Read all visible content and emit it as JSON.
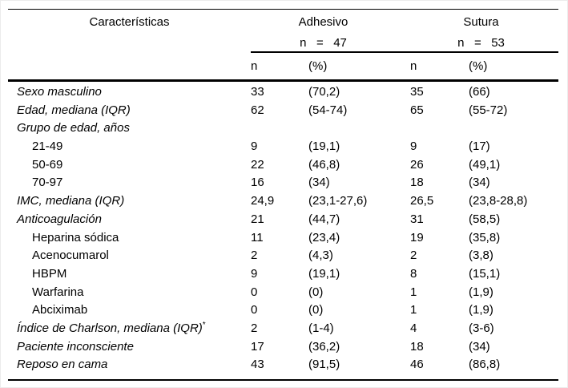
{
  "colors": {
    "text": "#000000",
    "rule": "#000000",
    "background": "#ffffff"
  },
  "table": {
    "first_col_header": "Características",
    "groups": [
      {
        "name": "Adhesivo",
        "n_line": "n   =   47"
      },
      {
        "name": "Sutura",
        "n_line": "n   =   53"
      }
    ],
    "subheaders": [
      "n",
      "(%)",
      "n",
      "(%)"
    ],
    "rows": [
      {
        "label": "Sexo masculino",
        "italic": true,
        "indent": false,
        "n1": "33",
        "p1": "(70,2)",
        "n2": "35",
        "p2": "(66)"
      },
      {
        "label": "Edad, mediana (IQR)",
        "italic": true,
        "indent": false,
        "n1": "62",
        "p1": "(54-74)",
        "n2": "65",
        "p2": "(55-72)"
      },
      {
        "label": "Grupo de edad, años",
        "italic": true,
        "indent": false,
        "n1": "",
        "p1": "",
        "n2": "",
        "p2": ""
      },
      {
        "label": "21-49",
        "italic": false,
        "indent": true,
        "n1": "9",
        "p1": "(19,1)",
        "n2": "9",
        "p2": "(17)"
      },
      {
        "label": "50-69",
        "italic": false,
        "indent": true,
        "n1": "22",
        "p1": "(46,8)",
        "n2": "26",
        "p2": "(49,1)"
      },
      {
        "label": "70-97",
        "italic": false,
        "indent": true,
        "n1": "16",
        "p1": "(34)",
        "n2": "18",
        "p2": "(34)"
      },
      {
        "label": "IMC, mediana (IQR)",
        "italic": true,
        "indent": false,
        "n1": "24,9",
        "p1": "(23,1-27,6)",
        "n2": "26,5",
        "p2": "(23,8-28,8)"
      },
      {
        "label": "Anticoagulación",
        "italic": true,
        "indent": false,
        "n1": "21",
        "p1": "(44,7)",
        "n2": "31",
        "p2": "(58,5)"
      },
      {
        "label": "Heparina sódica",
        "italic": false,
        "indent": true,
        "n1": "11",
        "p1": "(23,4)",
        "n2": "19",
        "p2": "(35,8)"
      },
      {
        "label": "Acenocumarol",
        "italic": false,
        "indent": true,
        "n1": "2",
        "p1": "(4,3)",
        "n2": "2",
        "p2": "(3,8)"
      },
      {
        "label": "HBPM",
        "italic": false,
        "indent": true,
        "n1": "9",
        "p1": "(19,1)",
        "n2": "8",
        "p2": "(15,1)"
      },
      {
        "label": "Warfarina",
        "italic": false,
        "indent": true,
        "n1": "0",
        "p1": "(0)",
        "n2": "1",
        "p2": "(1,9)"
      },
      {
        "label": "Abciximab",
        "italic": false,
        "indent": true,
        "n1": "0",
        "p1": "(0)",
        "n2": "1",
        "p2": "(1,9)"
      },
      {
        "label": "Índice de Charlson, mediana (IQR)",
        "italic": true,
        "indent": false,
        "sup": "*",
        "n1": "2",
        "p1": "(1-4)",
        "n2": "4",
        "p2": "(3-6)"
      },
      {
        "label": "Paciente inconsciente",
        "italic": true,
        "indent": false,
        "n1": "17",
        "p1": "(36,2)",
        "n2": "18",
        "p2": "(34)"
      },
      {
        "label": "Reposo en cama",
        "italic": true,
        "indent": false,
        "n1": "43",
        "p1": "(91,5)",
        "n2": "46",
        "p2": "(86,8)"
      }
    ]
  }
}
